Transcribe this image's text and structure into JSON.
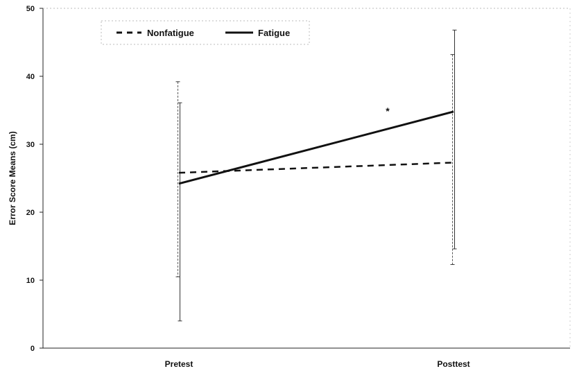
{
  "chart_data": {
    "type": "line",
    "categories": [
      "Pretest",
      "Posttest"
    ],
    "ylabel": "Error Score Means (cm)",
    "ylim": [
      0,
      50
    ],
    "yticks": [
      0,
      10,
      20,
      30,
      40,
      50
    ],
    "grid": false,
    "legend": "top-left",
    "series": [
      {
        "name": "Nonfatigue",
        "style": "dashed",
        "values": [
          25.8,
          27.3
        ],
        "error_low": [
          10.5,
          12.3
        ],
        "error_high": [
          39.2,
          43.2
        ]
      },
      {
        "name": "Fatigue",
        "style": "solid",
        "values": [
          24.2,
          34.8
        ],
        "error_low": [
          4.0,
          14.6
        ],
        "error_high": [
          36.1,
          46.8
        ]
      }
    ],
    "annotations": [
      {
        "text": "*",
        "x": "Posttest",
        "y": 35.2
      }
    ]
  }
}
